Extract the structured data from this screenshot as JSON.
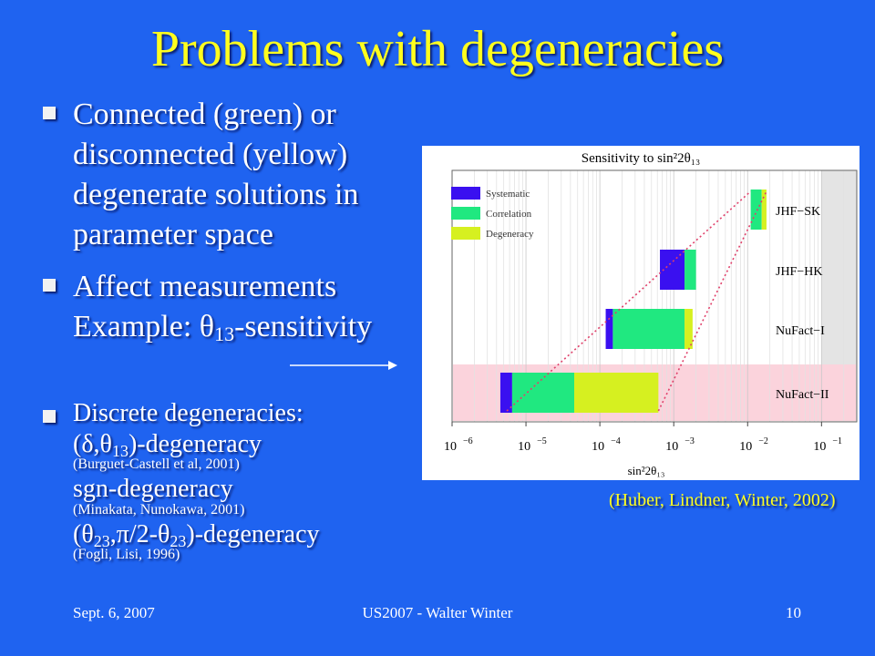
{
  "title": "Problems with degeneracies",
  "bullets": {
    "b1": {
      "lines": [
        "Connected (green) or",
        "disconnected (yellow)",
        "degenerate solutions in",
        "parameter space"
      ]
    },
    "b2": {
      "line1": "Affect measurements",
      "line2_pre": "Example: θ",
      "line2_sub": "13",
      "line2_post": "-sensitivity"
    },
    "b3": {
      "line1": "Discrete degeneracies:",
      "line2_pre": "(δ,θ",
      "line2_sub": "13",
      "line2_post": ")-degeneracy",
      "ref1": "(Burguet-Castell et al, 2001)",
      "line3": "sgn-degeneracy",
      "ref2": "(Minakata, Nunokawa, 2001)",
      "line4_pre": "(θ",
      "line4_sub1": "23",
      "line4_mid": ",π/2-θ",
      "line4_sub2": "23",
      "line4_post": ")-degeneracy",
      "ref3": "(Fogli, Lisi, 1996)"
    }
  },
  "chart_data": {
    "type": "bar",
    "title": "Sensitivity to sin²2θ₁₃",
    "xlabel": "sin²2θ₁₃",
    "xscale": "log",
    "xlim": [
      1e-06,
      0.3
    ],
    "xticks": [
      {
        "value": 1e-06,
        "base": "10",
        "exp": "−6"
      },
      {
        "value": 1e-05,
        "base": "10",
        "exp": "−5"
      },
      {
        "value": 0.0001,
        "base": "10",
        "exp": "−4"
      },
      {
        "value": 0.001,
        "base": "10",
        "exp": "−3"
      },
      {
        "value": 0.01,
        "base": "10",
        "exp": "−2"
      },
      {
        "value": 0.1,
        "base": "10",
        "exp": "−1"
      }
    ],
    "grid": true,
    "legend": {
      "placement": "top-left",
      "entries": [
        "Systematic",
        "Correlation",
        "Degeneracy"
      ]
    },
    "colors": {
      "Systematic": "#3a10f0",
      "Correlation": "#20e880",
      "Degeneracy": "#d6f020",
      "highlight": "#fbd3dc",
      "shade": "#e4e4e4",
      "connector": "#e0406a"
    },
    "shaded_region": [
      0.1,
      0.3
    ],
    "experiments": [
      {
        "name": "JHF−SK",
        "segments": [
          {
            "series": "Correlation",
            "from": 0.011,
            "to": 0.0155
          },
          {
            "series": "Degeneracy",
            "from": 0.0155,
            "to": 0.018
          }
        ]
      },
      {
        "name": "JHF−HK",
        "segments": [
          {
            "series": "Systematic",
            "from": 0.00065,
            "to": 0.0014
          },
          {
            "series": "Correlation",
            "from": 0.0014,
            "to": 0.002
          }
        ]
      },
      {
        "name": "NuFact−I",
        "segments": [
          {
            "series": "Systematic",
            "from": 0.00012,
            "to": 0.00015
          },
          {
            "series": "Correlation",
            "from": 0.00015,
            "to": 0.0014
          },
          {
            "series": "Degeneracy",
            "from": 0.0014,
            "to": 0.0018
          }
        ]
      },
      {
        "name": "NuFact−II",
        "highlight": true,
        "segments": [
          {
            "series": "Systematic",
            "from": 4.5e-06,
            "to": 6.5e-06
          },
          {
            "series": "Correlation",
            "from": 6.5e-06,
            "to": 4.5e-05
          },
          {
            "series": "Degeneracy",
            "from": 4.5e-05,
            "to": 0.00062
          }
        ]
      }
    ],
    "connectors": [
      {
        "from": {
          "x": 5.5e-06,
          "row": "NuFact−II"
        },
        "to": {
          "x": 0.011,
          "row": "JHF−SK"
        }
      },
      {
        "from": {
          "x": 0.00062,
          "row": "NuFact−II"
        },
        "to": {
          "x": 0.018,
          "row": "JHF−SK"
        }
      }
    ]
  },
  "citation": "(Huber, Lindner, Winter, 2002)",
  "footer": {
    "date": "Sept. 6, 2007",
    "center": "US2007 - Walter Winter",
    "page": "10"
  }
}
